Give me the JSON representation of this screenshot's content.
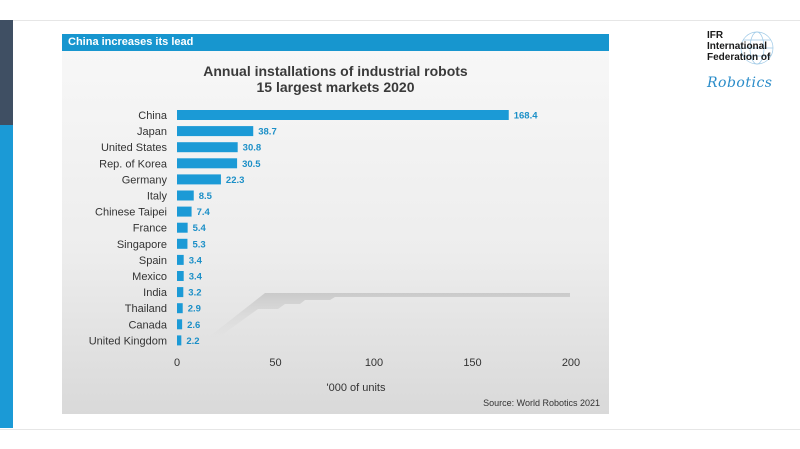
{
  "header": {
    "title": "China increases its lead"
  },
  "logo": {
    "lines": [
      "IFR",
      "International",
      "Federation of"
    ],
    "script": "Robotics",
    "globe_icon": "globe-icon"
  },
  "colors": {
    "bar": "#1b9ad6",
    "header": "#1796cf",
    "value_label": "#1b8fc7"
  },
  "chart_data": {
    "type": "bar",
    "orientation": "horizontal",
    "title": "Annual installations of industrial robots",
    "subtitle": "15 largest markets 2020",
    "categories": [
      "China",
      "Japan",
      "United States",
      "Rep. of Korea",
      "Germany",
      "Italy",
      "Chinese Taipei",
      "France",
      "Singapore",
      "Spain",
      "Mexico",
      "India",
      "Thailand",
      "Canada",
      "United Kingdom"
    ],
    "values": [
      168.4,
      38.7,
      30.8,
      30.5,
      22.3,
      8.5,
      7.4,
      5.4,
      5.3,
      3.4,
      3.4,
      3.2,
      2.9,
      2.6,
      2.2
    ],
    "value_labels": [
      "168.4",
      "38.7",
      "30.8",
      "30.5",
      "22.3",
      "8.5",
      "7.4",
      "5.4",
      "5.3",
      "3.4",
      "3.4",
      "3.2",
      "2.9",
      "2.6",
      "2.2"
    ],
    "xlim": [
      0,
      200
    ],
    "xticks": [
      0,
      50,
      100,
      150,
      200
    ],
    "xlabel": "'000 of units",
    "grid": false,
    "legend": "none",
    "source": "Source: World Robotics 2021"
  }
}
